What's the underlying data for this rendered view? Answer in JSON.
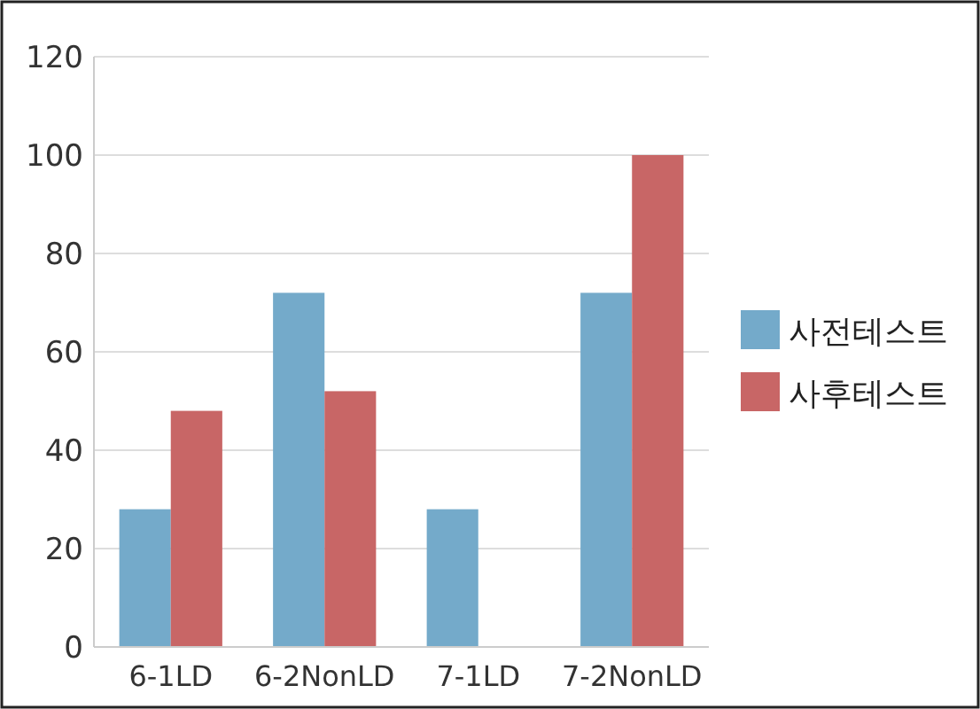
{
  "chart_data": {
    "type": "bar",
    "categories": [
      "6-1LD",
      "6-2NonLD",
      "7-1LD",
      "7-2NonLD"
    ],
    "series": [
      {
        "name": "사전테스트",
        "color": "#74aaca",
        "values": [
          28,
          72,
          28,
          72
        ]
      },
      {
        "name": "사후테스트",
        "color": "#c86666",
        "values": [
          48,
          52,
          0,
          100
        ]
      }
    ],
    "ylim": [
      0,
      120
    ],
    "yticks": [
      0,
      20,
      40,
      60,
      80,
      100,
      120
    ],
    "grid": "y",
    "legend": "right"
  }
}
